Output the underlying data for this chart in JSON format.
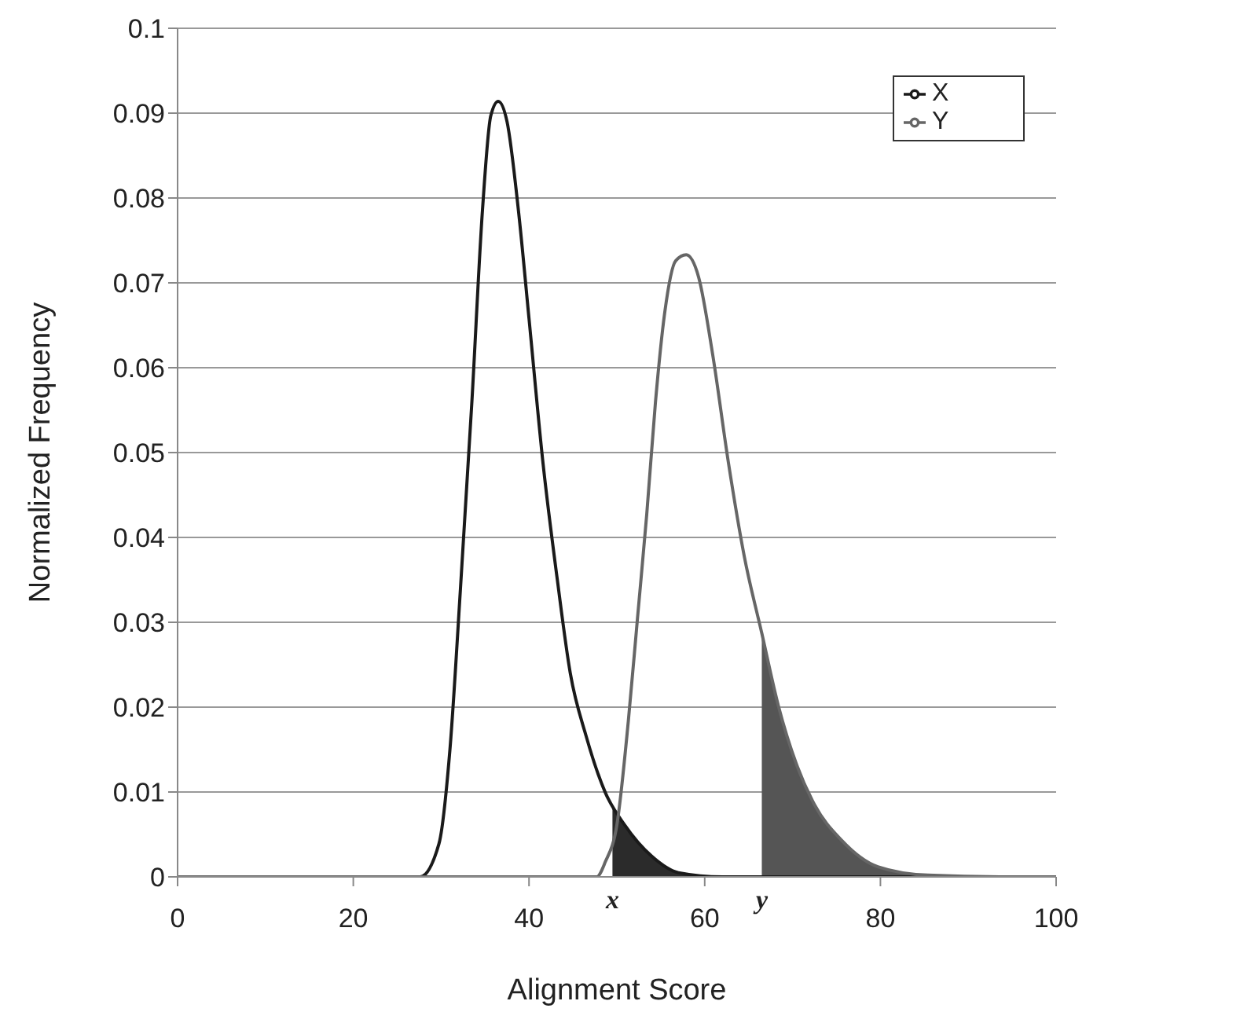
{
  "chart_data": {
    "type": "line",
    "xlabel": "Alignment Score",
    "ylabel": "Normalized Frequency",
    "xlim": [
      0,
      100
    ],
    "xticks": [
      0,
      20,
      40,
      60,
      80,
      100
    ],
    "ylim": [
      0,
      0.1
    ],
    "yticks": [
      0,
      0.01,
      0.02,
      0.03,
      0.04,
      0.05,
      0.06,
      0.07,
      0.08,
      0.09,
      0.1
    ],
    "grid": "y",
    "legend": "top right",
    "marker": "none",
    "line_style": "solid",
    "series": [
      {
        "type": "area",
        "color": "#2b2b2b",
        "x": [
          49.5,
          50.9,
          52.5,
          54,
          55.5,
          57,
          58.5,
          60
        ],
        "values": [
          0.0085,
          0.0061,
          0.0038,
          0.0024,
          0.0013,
          0.0005,
          0.0002,
          0
        ]
      },
      {
        "type": "area",
        "color": "#555555",
        "x": [
          66.5,
          68.4,
          70.4,
          72.5,
          75.6,
          79.7,
          85.4,
          90
        ],
        "values": [
          0.0287,
          0.0201,
          0.0134,
          0.0085,
          0.0043,
          0.0012,
          0.0002,
          0
        ]
      },
      {
        "name": "X",
        "color": "#1a1a1a",
        "x": [
          0,
          27.6,
          29.75,
          31,
          32.2,
          33.5,
          34.7,
          35.65,
          36.5,
          37.5,
          38.8,
          40,
          41.6,
          43.2,
          44.7,
          46.5,
          48.7,
          50.9,
          54,
          57,
          62,
          100
        ],
        "values": [
          0,
          0,
          0.0039,
          0.015,
          0.034,
          0.056,
          0.0785,
          0.0897,
          0.0914,
          0.089,
          0.0785,
          0.0658,
          0.0487,
          0.0352,
          0.024,
          0.0166,
          0.0099,
          0.0061,
          0.0024,
          0.0005,
          0,
          0
        ]
      },
      {
        "name": "Y",
        "color": "#666666",
        "x": [
          0,
          47.7,
          48.7,
          50,
          51.3,
          52.35,
          53.4,
          54.4,
          55.45,
          56.7,
          57.9,
          59.3,
          60.9,
          62.7,
          64.5,
          66.5,
          68.4,
          70.4,
          72.5,
          75.6,
          79.7,
          85.4,
          95,
          100
        ],
        "values": [
          0,
          0,
          0.0018,
          0.0061,
          0.0183,
          0.0305,
          0.0427,
          0.056,
          0.0665,
          0.0726,
          0.0733,
          0.0707,
          0.0616,
          0.0488,
          0.0378,
          0.0287,
          0.0201,
          0.0134,
          0.0085,
          0.0043,
          0.0012,
          0.0002,
          0,
          0
        ]
      }
    ],
    "annotations": [
      {
        "text": "x",
        "x": 49.5,
        "y": 0
      },
      {
        "text": "y",
        "x": 66.5,
        "y": 0
      }
    ]
  }
}
